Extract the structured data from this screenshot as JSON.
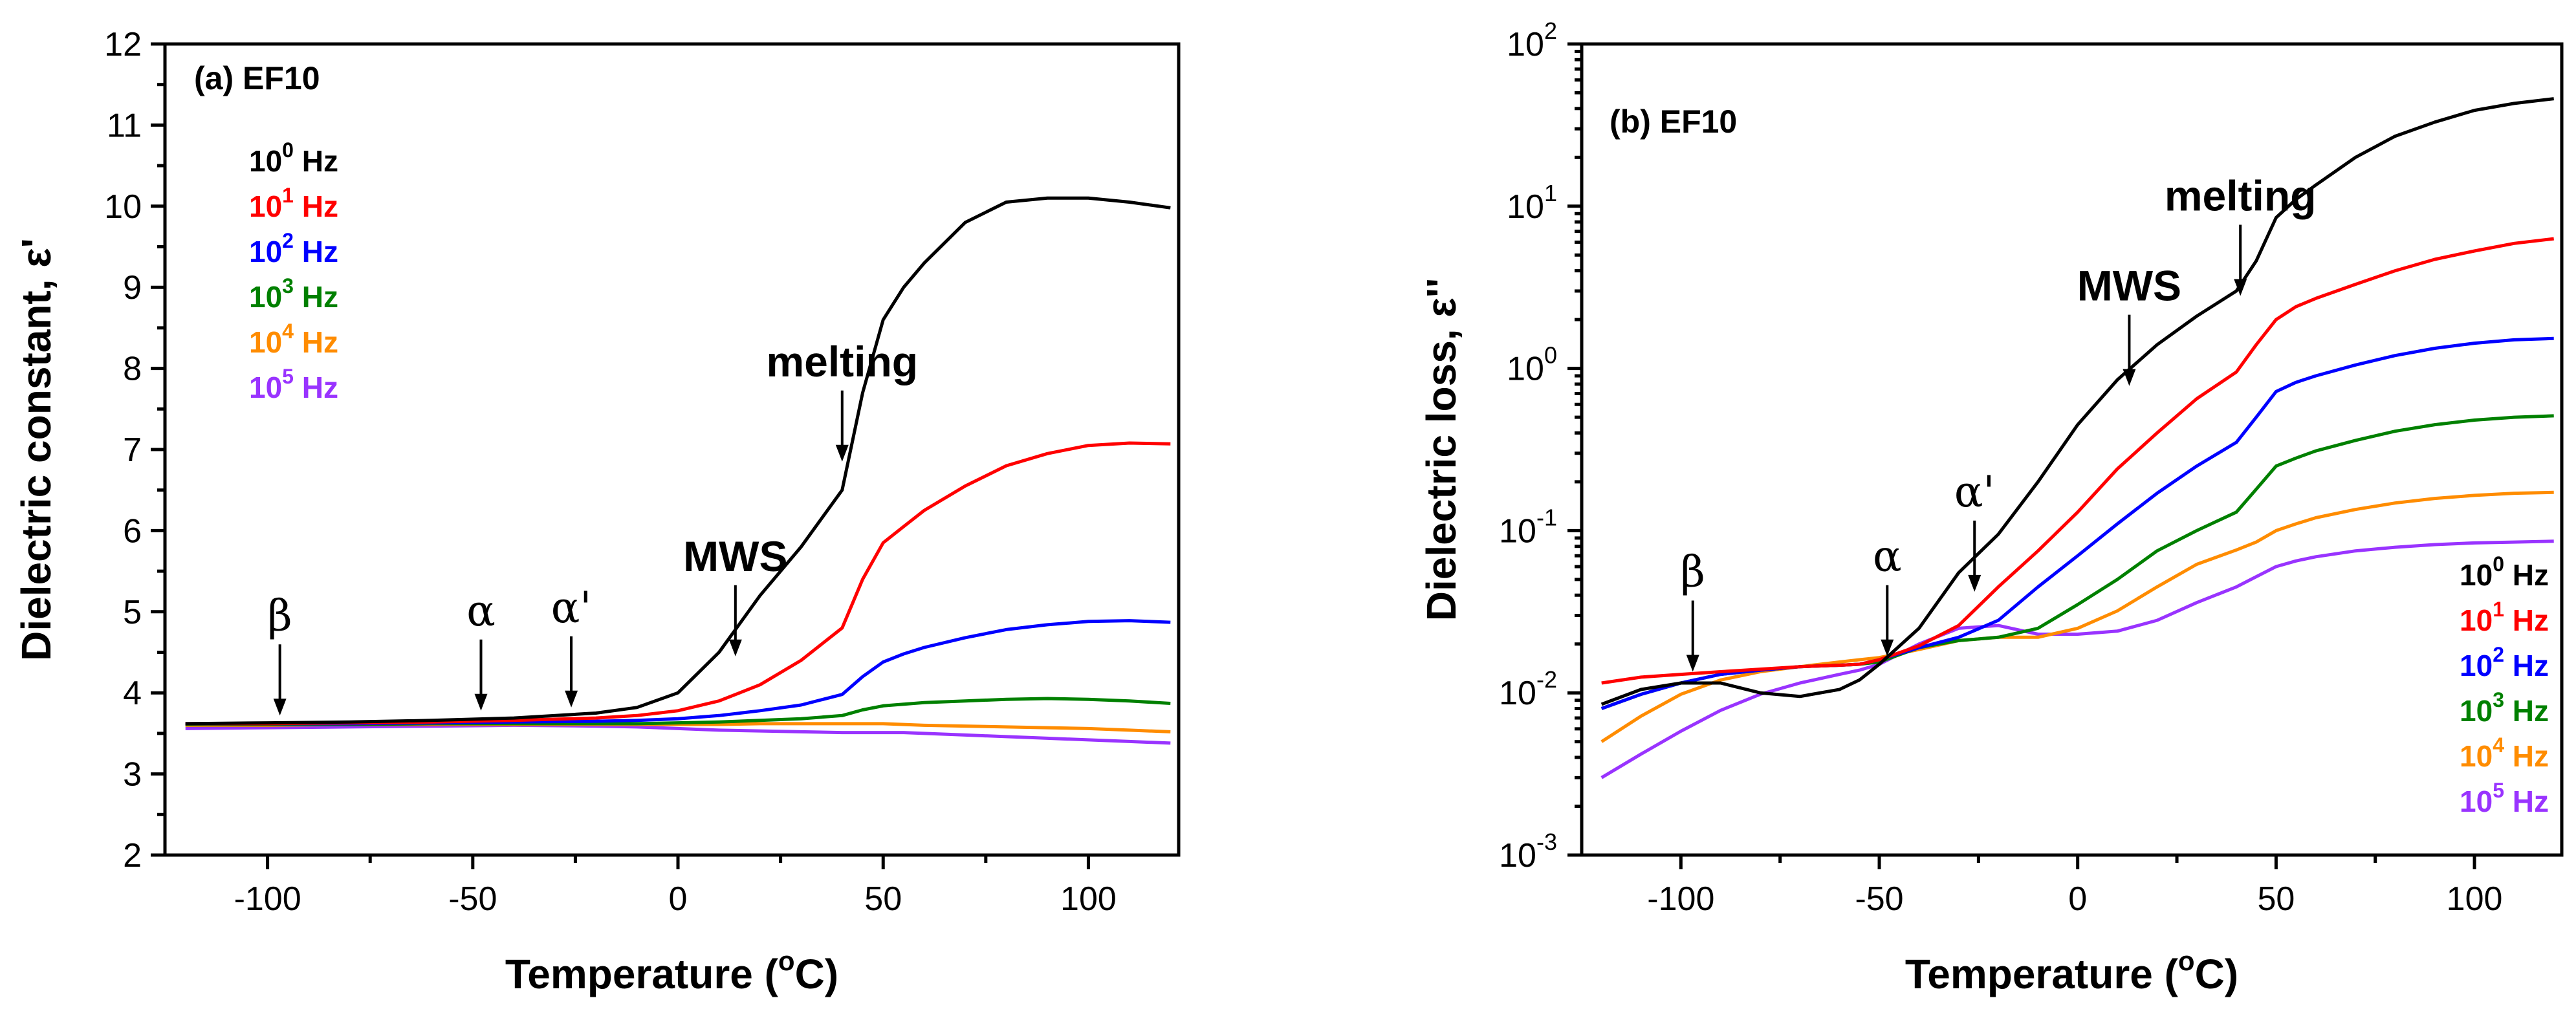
{
  "chart_data": [
    {
      "type": "line",
      "panel_label": "(a) EF10",
      "xlabel": "Temperature (",
      "xlabel_sup": "o",
      "xlabel_end": "C)",
      "ylabel": "Dielectric constant, ε'",
      "xlim": [
        -125,
        122
      ],
      "ylim": [
        2,
        12
      ],
      "yscale": "linear",
      "xticks": [
        -100,
        -50,
        0,
        50,
        100
      ],
      "xtick_labels": [
        "-100",
        "-50",
        "0",
        "50",
        "100"
      ],
      "yticks": [
        2,
        3,
        4,
        5,
        6,
        7,
        8,
        9,
        10,
        11,
        12
      ],
      "ytick_labels": [
        "2",
        "3",
        "4",
        "5",
        "6",
        "7",
        "8",
        "9",
        "10",
        "11",
        "12"
      ],
      "legend_position": "top-left",
      "x": [
        -120,
        -100,
        -80,
        -60,
        -40,
        -20,
        -10,
        0,
        10,
        20,
        30,
        40,
        45,
        50,
        55,
        60,
        70,
        80,
        90,
        100,
        110,
        120
      ],
      "series": [
        {
          "name": "10",
          "sup": "0",
          "unit": "Hz",
          "color": "#000000",
          "values": [
            3.62,
            3.63,
            3.64,
            3.66,
            3.69,
            3.75,
            3.82,
            4.0,
            4.5,
            5.2,
            5.8,
            6.5,
            7.7,
            8.6,
            9.0,
            9.3,
            9.8,
            10.05,
            10.1,
            10.1,
            10.05,
            9.98
          ]
        },
        {
          "name": "10",
          "sup": "1",
          "unit": "Hz",
          "color": "#ff0000",
          "values": [
            3.62,
            3.62,
            3.63,
            3.64,
            3.66,
            3.69,
            3.72,
            3.78,
            3.9,
            4.1,
            4.4,
            4.8,
            5.4,
            5.85,
            6.05,
            6.25,
            6.55,
            6.8,
            6.95,
            7.05,
            7.08,
            7.07
          ]
        },
        {
          "name": "10",
          "sup": "2",
          "unit": "Hz",
          "color": "#0000ff",
          "values": [
            3.62,
            3.62,
            3.62,
            3.63,
            3.64,
            3.65,
            3.66,
            3.68,
            3.72,
            3.78,
            3.85,
            3.98,
            4.2,
            4.38,
            4.48,
            4.56,
            4.68,
            4.78,
            4.84,
            4.88,
            4.89,
            4.87
          ]
        },
        {
          "name": "10",
          "sup": "3",
          "unit": "Hz",
          "color": "#008000",
          "values": [
            3.61,
            3.61,
            3.61,
            3.62,
            3.62,
            3.62,
            3.62,
            3.63,
            3.64,
            3.66,
            3.68,
            3.72,
            3.79,
            3.84,
            3.86,
            3.88,
            3.9,
            3.92,
            3.93,
            3.92,
            3.9,
            3.87
          ]
        },
        {
          "name": "10",
          "sup": "4",
          "unit": "Hz",
          "color": "#ff8c00",
          "values": [
            3.6,
            3.6,
            3.61,
            3.61,
            3.61,
            3.61,
            3.61,
            3.61,
            3.61,
            3.62,
            3.62,
            3.62,
            3.62,
            3.62,
            3.61,
            3.6,
            3.59,
            3.58,
            3.57,
            3.56,
            3.54,
            3.52
          ]
        },
        {
          "name": "10",
          "sup": "5",
          "unit": "Hz",
          "color": "#9933ff",
          "values": [
            3.56,
            3.57,
            3.58,
            3.59,
            3.6,
            3.59,
            3.58,
            3.56,
            3.54,
            3.53,
            3.52,
            3.51,
            3.51,
            3.51,
            3.51,
            3.5,
            3.48,
            3.46,
            3.44,
            3.42,
            3.4,
            3.38
          ]
        }
      ],
      "annotations": [
        {
          "label": "β",
          "greek": true,
          "x": -97,
          "y_arrow": 3.72
        },
        {
          "label": "α",
          "greek": true,
          "x": -48,
          "y_arrow": 3.78
        },
        {
          "label": "α'",
          "greek": true,
          "x": -26,
          "y_arrow": 3.82
        },
        {
          "label": "MWS",
          "greek": false,
          "x": 14,
          "y_arrow": 4.45
        },
        {
          "label": "melting",
          "greek": false,
          "x": 40,
          "y_arrow": 6.85
        }
      ]
    },
    {
      "type": "line",
      "panel_label": "(b) EF10",
      "xlabel": "Temperature (",
      "xlabel_sup": "o",
      "xlabel_end": "C)",
      "ylabel": "Dielectric loss, ε''",
      "xlim": [
        -125,
        122
      ],
      "ylim": [
        0.001,
        100
      ],
      "yscale": "log",
      "xticks": [
        -100,
        -50,
        0,
        50,
        100
      ],
      "xtick_labels": [
        "-100",
        "-50",
        "0",
        "50",
        "100"
      ],
      "yticks": [
        0.001,
        0.01,
        0.1,
        1,
        10,
        100
      ],
      "ytick_labels": [
        {
          "base": "10",
          "exp": "-3"
        },
        {
          "base": "10",
          "exp": "-2"
        },
        {
          "base": "10",
          "exp": "-1"
        },
        {
          "base": "10",
          "exp": "0"
        },
        {
          "base": "10",
          "exp": "1"
        },
        {
          "base": "10",
          "exp": "2"
        }
      ],
      "legend_position": "bottom-right",
      "x": [
        -120,
        -110,
        -100,
        -90,
        -80,
        -70,
        -60,
        -55,
        -50,
        -40,
        -30,
        -20,
        -10,
        0,
        10,
        20,
        30,
        40,
        45,
        50,
        55,
        60,
        70,
        80,
        90,
        100,
        110,
        120
      ],
      "series": [
        {
          "name": "10",
          "sup": "0",
          "unit": "Hz",
          "color": "#000000",
          "values": [
            0.0085,
            0.0105,
            0.0115,
            0.0115,
            0.01,
            0.0095,
            0.0105,
            0.012,
            0.015,
            0.025,
            0.055,
            0.095,
            0.2,
            0.45,
            0.85,
            1.4,
            2.1,
            3.0,
            4.6,
            8.5,
            11,
            13.5,
            20,
            27,
            33,
            39,
            43,
            46
          ]
        },
        {
          "name": "10",
          "sup": "1",
          "unit": "Hz",
          "color": "#ff0000",
          "values": [
            0.0115,
            0.0125,
            0.013,
            0.0135,
            0.014,
            0.0145,
            0.0148,
            0.015,
            0.016,
            0.0195,
            0.026,
            0.045,
            0.075,
            0.13,
            0.24,
            0.4,
            0.65,
            0.95,
            1.4,
            2.0,
            2.4,
            2.7,
            3.3,
            4.0,
            4.7,
            5.3,
            5.9,
            6.3
          ]
        },
        {
          "name": "10",
          "sup": "2",
          "unit": "Hz",
          "color": "#0000ff",
          "values": [
            0.008,
            0.0098,
            0.0115,
            0.013,
            0.0138,
            0.0145,
            0.0148,
            0.015,
            0.016,
            0.019,
            0.022,
            0.028,
            0.045,
            0.07,
            0.11,
            0.17,
            0.25,
            0.35,
            0.5,
            0.72,
            0.82,
            0.9,
            1.05,
            1.2,
            1.33,
            1.43,
            1.5,
            1.53
          ]
        },
        {
          "name": "10",
          "sup": "3",
          "unit": "Hz",
          "color": "#008000",
          "values": [
            0.008,
            0.0098,
            0.0115,
            0.013,
            0.0138,
            0.0145,
            0.0148,
            0.015,
            0.0155,
            0.019,
            0.021,
            0.022,
            0.025,
            0.035,
            0.05,
            0.075,
            0.1,
            0.13,
            0.18,
            0.25,
            0.28,
            0.31,
            0.36,
            0.41,
            0.45,
            0.48,
            0.5,
            0.51
          ]
        },
        {
          "name": "10",
          "sup": "4",
          "unit": "Hz",
          "color": "#ff8c00",
          "values": [
            0.005,
            0.0072,
            0.0098,
            0.012,
            0.0135,
            0.0145,
            0.0155,
            0.016,
            0.0165,
            0.0185,
            0.021,
            0.022,
            0.022,
            0.025,
            0.032,
            0.045,
            0.062,
            0.076,
            0.085,
            0.1,
            0.11,
            0.12,
            0.135,
            0.148,
            0.158,
            0.165,
            0.17,
            0.172
          ]
        },
        {
          "name": "10",
          "sup": "5",
          "unit": "Hz",
          "color": "#9933ff",
          "values": [
            0.003,
            0.0042,
            0.0058,
            0.0078,
            0.0098,
            0.0115,
            0.013,
            0.0138,
            0.015,
            0.02,
            0.025,
            0.026,
            0.023,
            0.023,
            0.024,
            0.028,
            0.036,
            0.045,
            0.052,
            0.06,
            0.065,
            0.069,
            0.075,
            0.079,
            0.082,
            0.084,
            0.085,
            0.086
          ]
        }
      ],
      "annotations": [
        {
          "label": "β",
          "greek": true,
          "x": -97,
          "y_arrow": 0.0135
        },
        {
          "label": "α",
          "greek": true,
          "x": -48,
          "y_arrow": 0.0168
        },
        {
          "label": "α'",
          "greek": true,
          "x": -26,
          "y_arrow": 0.042
        },
        {
          "label": "MWS",
          "greek": false,
          "x": 13,
          "y_arrow": 0.78
        },
        {
          "label": "melting",
          "greek": false,
          "x": 41,
          "y_arrow": 2.8
        }
      ]
    }
  ]
}
